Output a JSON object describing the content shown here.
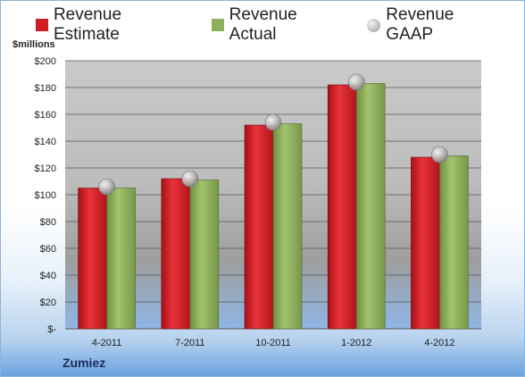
{
  "chart_data": {
    "type": "bar",
    "categories": [
      "4-2011",
      "7-2011",
      "10-2011",
      "1-2012",
      "4-2012"
    ],
    "series": [
      {
        "name": "Revenue Estimate",
        "values": [
          105,
          112,
          152,
          182,
          128
        ],
        "color": "#d01c23"
      },
      {
        "name": "Revenue Actual",
        "values": [
          105,
          111,
          153,
          183,
          129
        ],
        "color": "#8db05a"
      },
      {
        "name": "Revenue GAAP",
        "values": [
          106,
          112,
          154,
          184,
          130
        ],
        "color": "#c0c0c0",
        "marker": "circle"
      }
    ],
    "ylabel": "$millions",
    "ylim": [
      0,
      200
    ],
    "yticks": [
      "$-",
      "$20",
      "$40",
      "$60",
      "$80",
      "$100",
      "$120",
      "$140",
      "$160",
      "$180",
      "$200"
    ],
    "grid": true,
    "legend_position": "top"
  },
  "company": "Zumiez"
}
